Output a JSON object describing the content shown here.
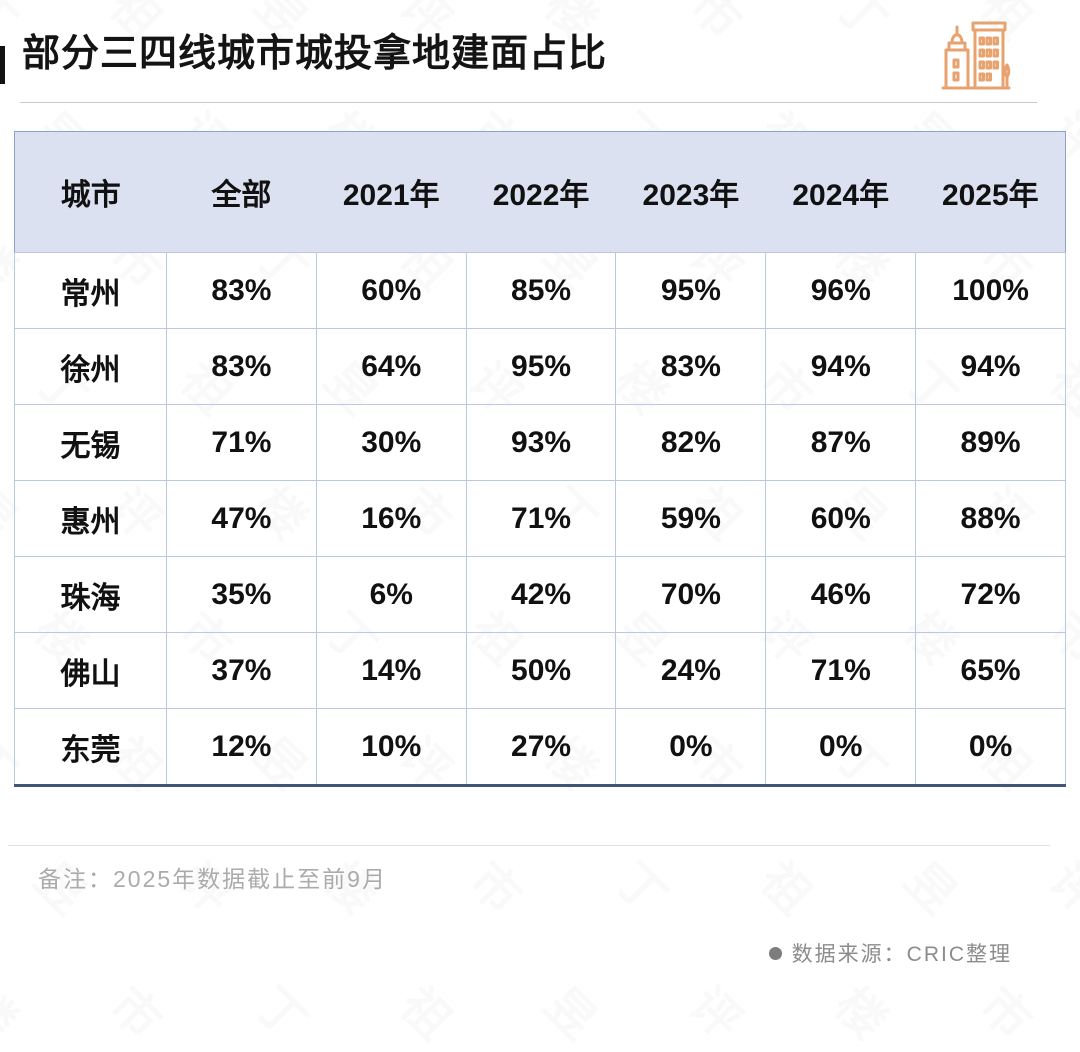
{
  "title": "部分三四线城市城投拿地建面占比",
  "chart_data": {
    "type": "table",
    "title": "部分三四线城市城投拿地建面占比",
    "columns": [
      "城市",
      "全部",
      "2021年",
      "2022年",
      "2023年",
      "2024年",
      "2025年"
    ],
    "rows": [
      {
        "city": "常州",
        "values": [
          "83%",
          "60%",
          "85%",
          "95%",
          "96%",
          "100%"
        ]
      },
      {
        "city": "徐州",
        "values": [
          "83%",
          "64%",
          "95%",
          "83%",
          "94%",
          "94%"
        ]
      },
      {
        "city": "无锡",
        "values": [
          "71%",
          "30%",
          "93%",
          "82%",
          "87%",
          "89%"
        ]
      },
      {
        "city": "惠州",
        "values": [
          "47%",
          "16%",
          "71%",
          "59%",
          "60%",
          "88%"
        ]
      },
      {
        "city": "珠海",
        "values": [
          "35%",
          "6%",
          "42%",
          "70%",
          "46%",
          "72%"
        ]
      },
      {
        "city": "佛山",
        "values": [
          "37%",
          "14%",
          "50%",
          "24%",
          "71%",
          "65%"
        ]
      },
      {
        "city": "东莞",
        "values": [
          "12%",
          "10%",
          "27%",
          "0%",
          "0%",
          "0%"
        ]
      }
    ],
    "legend_position": "none",
    "grid": true
  },
  "note": "备注：2025年数据截止至前9月",
  "source": {
    "text": "数据来源：CRIC整理"
  },
  "icons": {
    "header_icon": "city-buildings-icon"
  },
  "colors": {
    "accent_orange": "#E8A26E",
    "header_bg": "#dce1f1",
    "cell_border": "#bcc8e2",
    "outer_border": "#8ca3c9",
    "table_bottom_border": "#3f567a",
    "title_text": "#141414",
    "note_text": "#ababab",
    "source_text": "#8c8c8c"
  },
  "watermark_chars": [
    "丁",
    "祖",
    "昱",
    "评",
    "楼",
    "市"
  ]
}
